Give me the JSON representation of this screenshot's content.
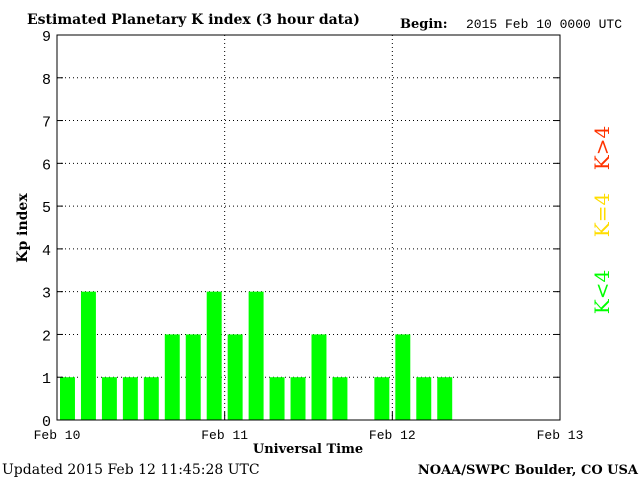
{
  "chart_data": {
    "type": "bar",
    "title": "Estimated Planetary K index (3 hour data)",
    "begin_label": "Begin:",
    "begin_value": "2015 Feb 10 0000 UTC",
    "xlabel": "Universal Time",
    "ylabel": "Kp index",
    "ylim": [
      0,
      9
    ],
    "yticks": [
      "0",
      "1",
      "2",
      "3",
      "4",
      "5",
      "6",
      "7",
      "8",
      "9"
    ],
    "xticks": [
      "Feb 10",
      "Feb 11",
      "Feb 12",
      "Feb 13"
    ],
    "interval_hours": 3,
    "values": [
      1,
      3,
      1,
      1,
      1,
      2,
      2,
      3,
      2,
      3,
      1,
      1,
      2,
      1,
      null,
      1,
      2,
      1,
      1,
      null,
      null,
      null,
      null,
      null
    ],
    "grid": true,
    "legend": [
      {
        "label": "K>4",
        "color": "#ff3300"
      },
      {
        "label": "K=4",
        "color": "#ffdd00"
      },
      {
        "label": "K<4",
        "color": "#00ff00"
      }
    ],
    "bar_color": "#00ff00"
  },
  "footer": {
    "updated": "Updated 2015 Feb 12 11:45:28 UTC",
    "credit": "NOAA/SWPC Boulder, CO USA"
  }
}
